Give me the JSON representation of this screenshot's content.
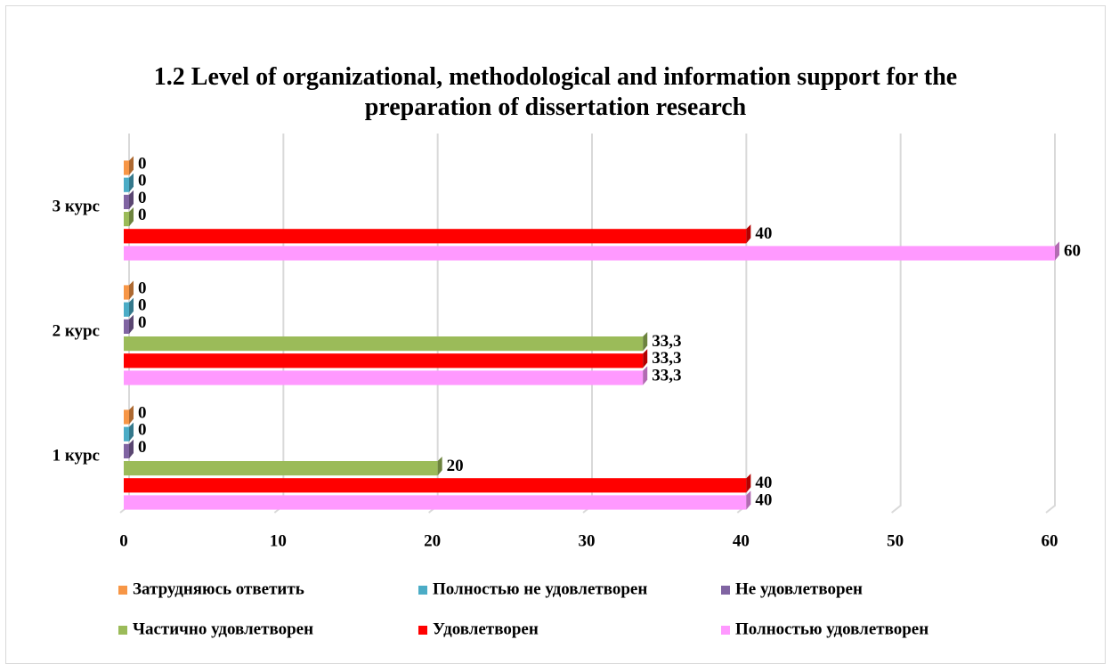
{
  "chart_data": {
    "type": "bar",
    "orientation": "horizontal",
    "title": "1.2 Level of organizational, methodological and information support for the preparation of dissertation research",
    "categories": [
      "1 курс",
      "2 курс",
      "3 курс"
    ],
    "series": [
      {
        "name": "Затрудняюсь ответить",
        "color": "#f79646",
        "values": [
          0,
          0,
          0
        ]
      },
      {
        "name": "Полностью не удовлетворен",
        "color": "#4bacc6",
        "values": [
          0,
          0,
          0
        ]
      },
      {
        "name": "Не удовлетворен",
        "color": "#8064a2",
        "values": [
          0,
          0,
          0
        ]
      },
      {
        "name": "Частично удовлетворен",
        "color": "#9bbb59",
        "values": [
          20,
          33.3,
          0
        ],
        "value_labels": [
          "20",
          "33,3",
          "0"
        ]
      },
      {
        "name": "Удовлетворен",
        "color": "#ff0000",
        "values": [
          40,
          33.3,
          40
        ],
        "value_labels": [
          "40",
          "33,3",
          "40"
        ]
      },
      {
        "name": "Полностью удовлетворен",
        "color": "#ff99ff",
        "values": [
          40,
          33.3,
          60
        ],
        "value_labels": [
          "40",
          "33,3",
          "60"
        ]
      }
    ],
    "xlim": [
      0,
      60
    ],
    "xticks": [
      0,
      10,
      20,
      30,
      40,
      50,
      60
    ],
    "grid": true,
    "legend": "bottom"
  }
}
